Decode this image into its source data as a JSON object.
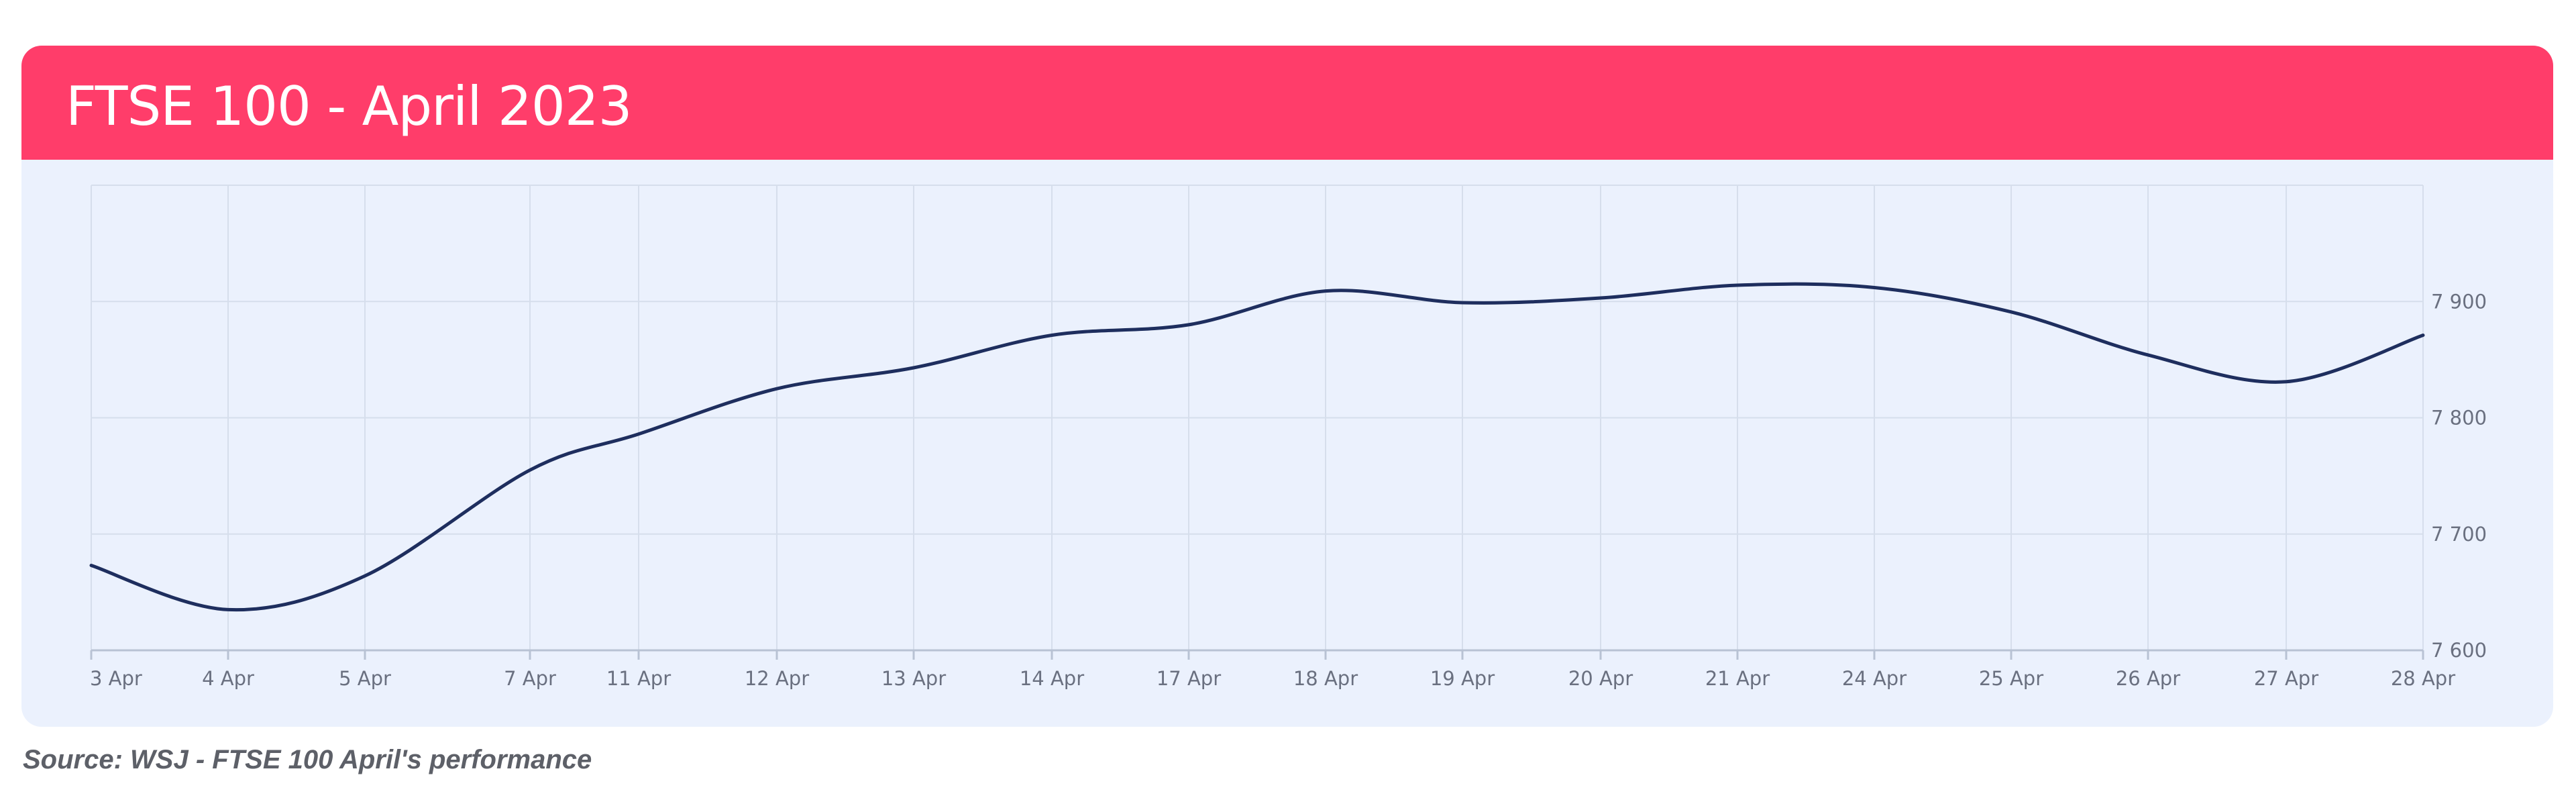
{
  "header": {
    "title": "FTSE 100 - April 2023"
  },
  "source": "Source: WSJ - FTSE 100 April's performance",
  "colors": {
    "header_bg": "#ff3d6a",
    "card_bg": "#ebf1fd",
    "line": "#1e2e5e",
    "grid": "#d6deec"
  },
  "chart_data": {
    "type": "line",
    "title": "FTSE 100 - April 2023",
    "xlabel": "",
    "ylabel": "",
    "categories": [
      "3 Apr",
      "4 Apr",
      "5 Apr",
      "7 Apr",
      "11 Apr",
      "12 Apr",
      "13 Apr",
      "14 Apr",
      "17 Apr",
      "18 Apr",
      "19 Apr",
      "20 Apr",
      "21 Apr",
      "24 Apr",
      "25 Apr",
      "26 Apr",
      "27 Apr",
      "28 Apr"
    ],
    "values": [
      7673,
      7635,
      7664,
      7755,
      7786,
      7825,
      7843,
      7871,
      7880,
      7909,
      7899,
      7903,
      7914,
      7912,
      7891,
      7854,
      7831,
      7871
    ],
    "ylim": [
      7600,
      8000
    ],
    "yticks": [
      7600,
      7700,
      7800,
      7900
    ],
    "ytick_labels": [
      "7 600",
      "7 700",
      "7 800",
      "7 900"
    ],
    "grid": true,
    "y_axis_side": "right"
  }
}
